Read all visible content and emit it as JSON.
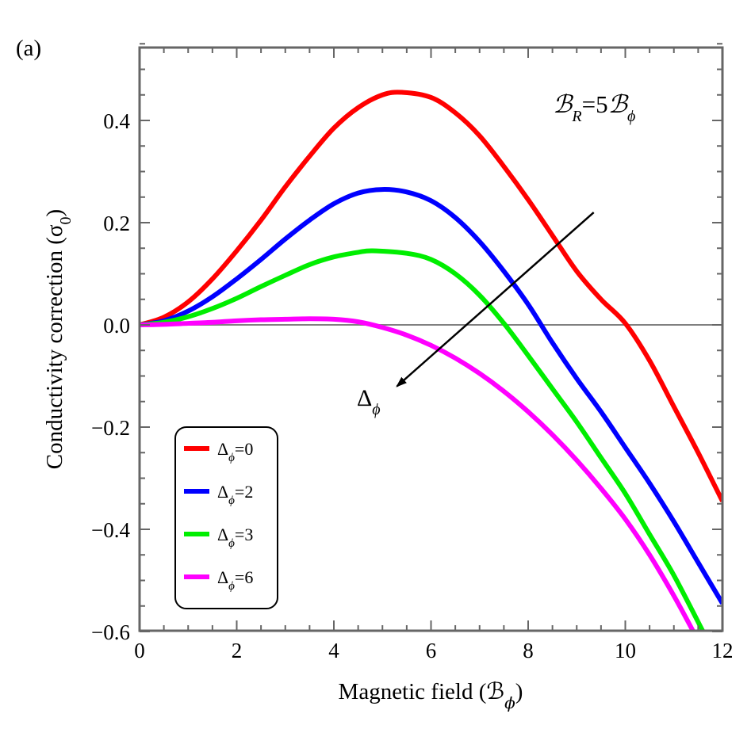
{
  "chart_data": {
    "type": "line",
    "panel_label": "(a)",
    "title": "",
    "xlabel": "Magnetic field (ℬ",
    "xlabel_sub": "ϕ",
    "xlabel_close": ")",
    "ylabel": "Conductivity correction (σ",
    "ylabel_sub": "0",
    "ylabel_close": ")",
    "xlim": [
      0,
      12
    ],
    "ylim": [
      -0.6,
      0.55
    ],
    "x_ticks": [
      0,
      2,
      4,
      6,
      8,
      10,
      12
    ],
    "x_tick_labels": [
      "0",
      "2",
      "4",
      "6",
      "8",
      "10",
      "12"
    ],
    "y_ticks": [
      -0.6,
      -0.4,
      -0.2,
      0.0,
      0.2,
      0.4
    ],
    "y_tick_labels": [
      "−0.6",
      "−0.4",
      "−0.2",
      "0.0",
      "0.2",
      "0.4"
    ],
    "grid": false,
    "legend_position": "bottom-left",
    "annotation_condition": {
      "lhs": "ℬ",
      "lhs_sub": "R",
      "eq": "=5",
      "rhs": "ℬ",
      "rhs_sub": "ϕ"
    },
    "annotation_arrow": {
      "label": "Δ",
      "label_sub": "ϕ",
      "from": [
        9.35,
        0.22
      ],
      "to": [
        5.3,
        -0.12
      ]
    },
    "series": [
      {
        "name": "Δϕ=0",
        "legend_main": "Δ",
        "legend_sub": "ϕ",
        "legend_value": "=0",
        "color": "#ff0000",
        "x": [
          0,
          0.5,
          1,
          1.5,
          2,
          2.5,
          3,
          3.5,
          4,
          4.5,
          5,
          5.4,
          6,
          6.5,
          7,
          7.5,
          8,
          8.5,
          9,
          9.5,
          10,
          10.5,
          11,
          11.5,
          12
        ],
        "y": [
          0,
          0.015,
          0.045,
          0.09,
          0.145,
          0.205,
          0.27,
          0.33,
          0.385,
          0.425,
          0.45,
          0.455,
          0.445,
          0.415,
          0.37,
          0.31,
          0.245,
          0.175,
          0.105,
          0.05,
          0.003,
          -0.07,
          -0.16,
          -0.25,
          -0.345
        ]
      },
      {
        "name": "Δϕ=2",
        "legend_main": "Δ",
        "legend_sub": "ϕ",
        "legend_value": "=2",
        "color": "#0000ff",
        "x": [
          0,
          0.5,
          1,
          1.5,
          2,
          2.5,
          3,
          3.5,
          4,
          4.5,
          5,
          5.5,
          6,
          6.5,
          7,
          7.5,
          8,
          8.5,
          9,
          9.5,
          10,
          10.5,
          11,
          11.5,
          12
        ],
        "y": [
          0,
          0.008,
          0.027,
          0.055,
          0.09,
          0.128,
          0.168,
          0.205,
          0.237,
          0.258,
          0.265,
          0.26,
          0.243,
          0.21,
          0.163,
          0.105,
          0.04,
          -0.035,
          -0.105,
          -0.17,
          -0.24,
          -0.31,
          -0.385,
          -0.465,
          -0.545
        ]
      },
      {
        "name": "Δϕ=3",
        "legend_main": "Δ",
        "legend_sub": "ϕ",
        "legend_value": "=3",
        "color": "#00ee00",
        "x": [
          0,
          0.5,
          1,
          1.5,
          2,
          2.5,
          3,
          3.5,
          4,
          4.5,
          4.8,
          5.5,
          6,
          6.5,
          7,
          7.5,
          8,
          8.5,
          9,
          9.5,
          10,
          10.5,
          11,
          11.6
        ],
        "y": [
          0,
          0.005,
          0.016,
          0.032,
          0.052,
          0.075,
          0.097,
          0.118,
          0.133,
          0.142,
          0.145,
          0.14,
          0.128,
          0.1,
          0.058,
          0.003,
          -0.06,
          -0.125,
          -0.19,
          -0.26,
          -0.33,
          -0.41,
          -0.49,
          -0.6
        ]
      },
      {
        "name": "Δϕ=6",
        "legend_main": "Δ",
        "legend_sub": "ϕ",
        "legend_value": "=6",
        "color": "#ff00ff",
        "x": [
          0,
          0.5,
          1,
          1.5,
          2,
          2.5,
          3,
          3.5,
          4,
          4.5,
          5,
          5.5,
          6,
          6.5,
          7,
          7.5,
          8,
          8.5,
          9,
          9.5,
          10,
          10.5,
          11,
          11.4
        ],
        "y": [
          0,
          0.001,
          0.003,
          0.005,
          0.008,
          0.01,
          0.011,
          0.012,
          0.011,
          0.006,
          -0.005,
          -0.02,
          -0.04,
          -0.065,
          -0.095,
          -0.13,
          -0.17,
          -0.215,
          -0.265,
          -0.32,
          -0.38,
          -0.45,
          -0.53,
          -0.6
        ]
      }
    ]
  }
}
